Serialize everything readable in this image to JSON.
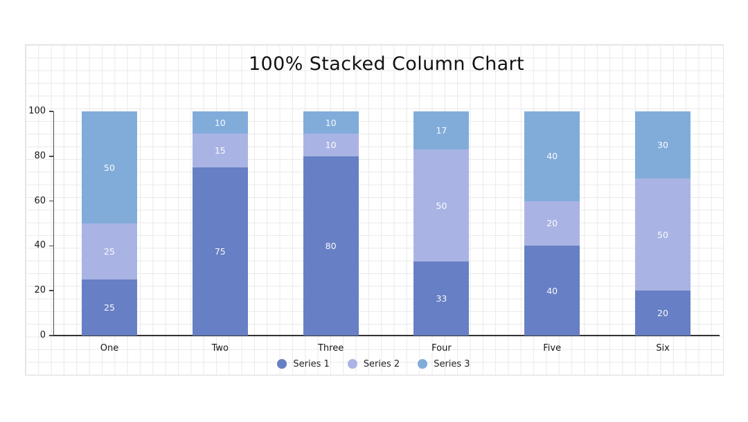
{
  "chart_data": {
    "type": "bar",
    "variant": "100% stacked column",
    "title": "100% Stacked Column Chart",
    "categories": [
      "One",
      "Two",
      "Three",
      "Four",
      "Five",
      "Six"
    ],
    "series": [
      {
        "name": "Series 1",
        "color": "#677fc4",
        "values": [
          25,
          75,
          80,
          33,
          40,
          20
        ]
      },
      {
        "name": "Series 2",
        "color": "#aab4e4",
        "values": [
          25,
          15,
          10,
          50,
          20,
          50
        ]
      },
      {
        "name": "Series 3",
        "color": "#81acda",
        "values": [
          50,
          10,
          10,
          17,
          40,
          30
        ]
      }
    ],
    "y_ticks": [
      0,
      20,
      40,
      60,
      80,
      100
    ],
    "ylim": [
      0,
      100
    ],
    "xlabel": "",
    "ylabel": "",
    "grid": "graph-paper squares across entire chart surface",
    "legend_position": "bottom-center",
    "data_labels": "white values centered inside each segment"
  },
  "colors": {
    "background": "#ffffff",
    "grid_line": "#e9e9e9",
    "surface_border": "#e2e2e2",
    "y_axis": "#4a4a4a",
    "x_baseline": "#333333",
    "title_text": "#111111",
    "tick_label": "#161616",
    "category_label": "#161616",
    "legend_label": "#222222",
    "value_label": "#ffffff"
  }
}
